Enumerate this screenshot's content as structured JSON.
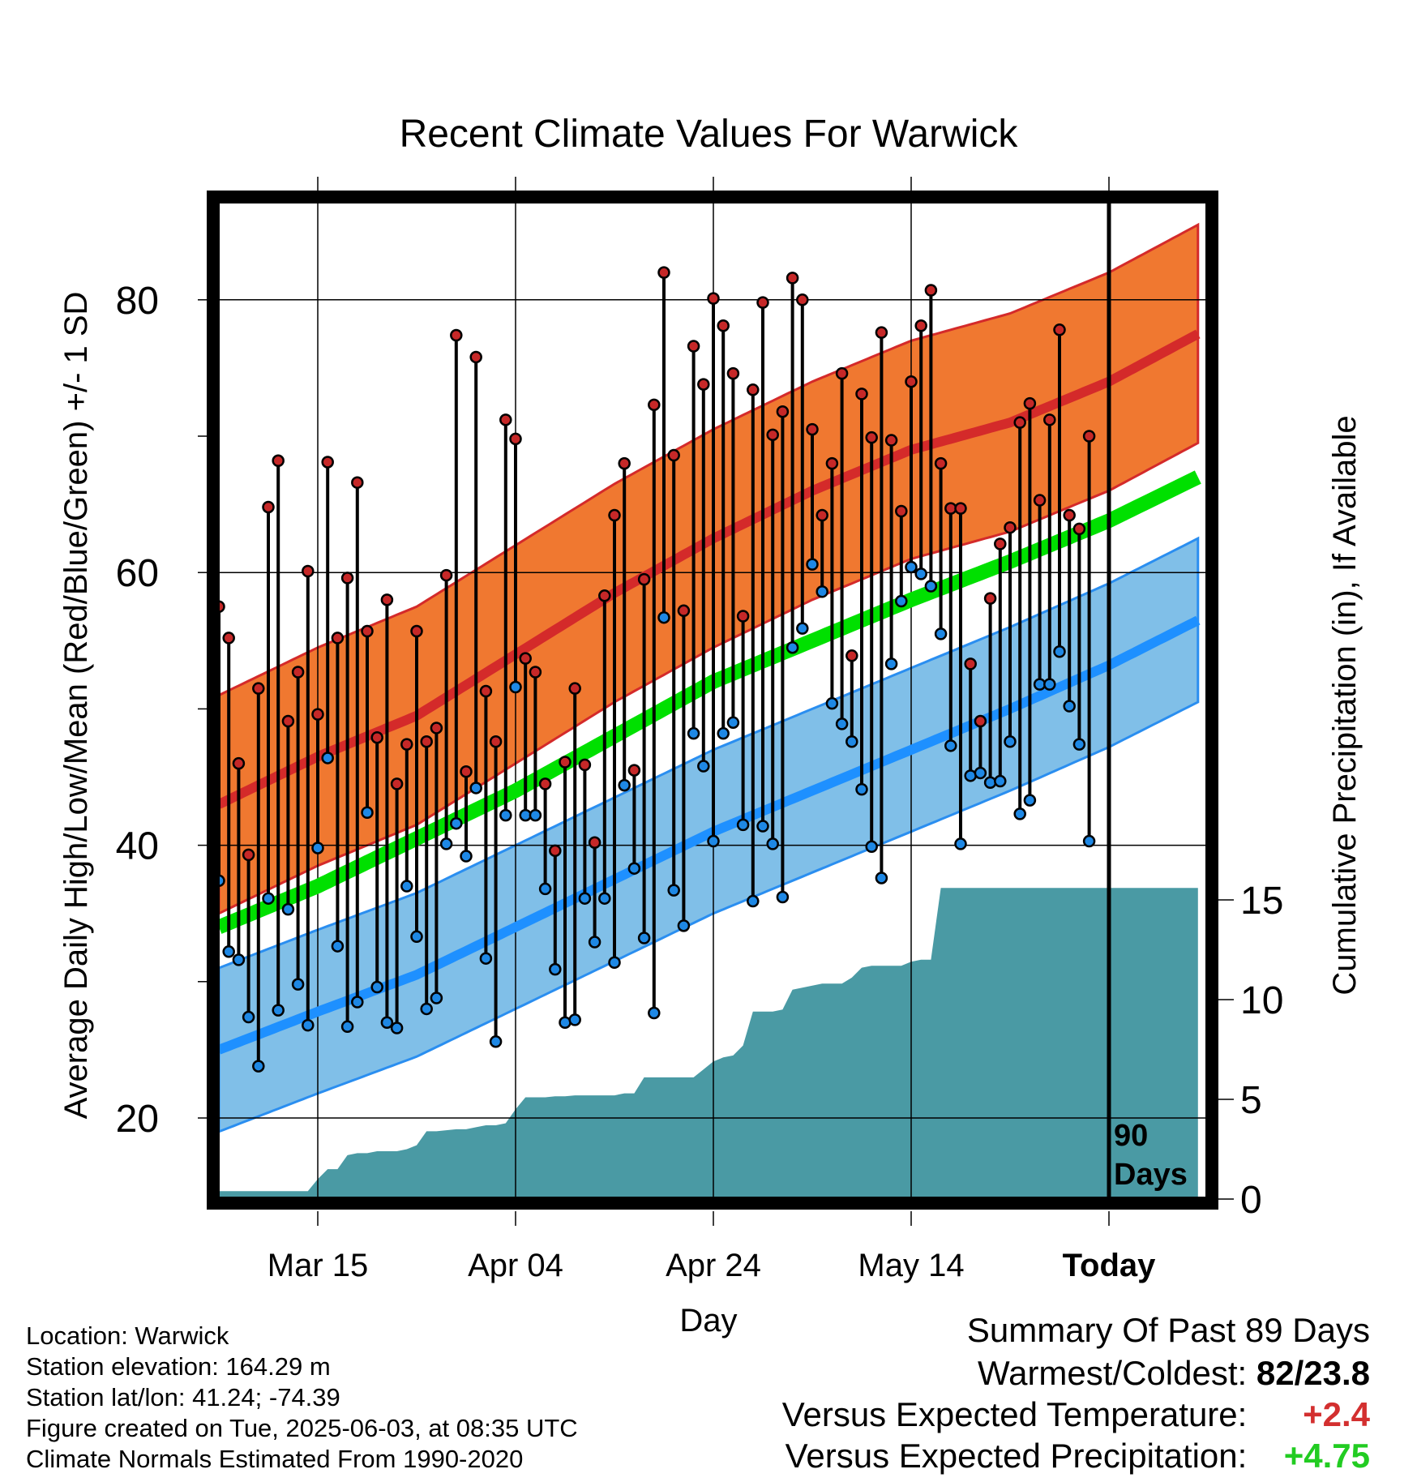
{
  "chart_data": {
    "type": "line",
    "title": "Recent Climate Values For Warwick",
    "xlabel": "Day",
    "ylabel_left": "Average Daily High/Low/Mean (Red/Blue/Green) +/- 1 SD",
    "ylabel_right": "Cumulative Precipitation (in), If Available",
    "x_ticks": [
      {
        "day": 10,
        "label": "Mar 15"
      },
      {
        "day": 30,
        "label": "Apr 04"
      },
      {
        "day": 50,
        "label": "Apr 24"
      },
      {
        "day": 70,
        "label": "May 14"
      },
      {
        "day": 90,
        "label": "Today"
      }
    ],
    "xlim": [
      0,
      99
    ],
    "temp_ylim": [
      14,
      88
    ],
    "temp_ticks": [
      20,
      40,
      60,
      80
    ],
    "precip_ylim": [
      0,
      41
    ],
    "precip_ticks": [
      0,
      5,
      10,
      15
    ],
    "today_marker_day": 90,
    "today_label": [
      "90",
      "Days"
    ],
    "normal_days": [
      0,
      10,
      20,
      30,
      40,
      50,
      60,
      70,
      80,
      90,
      99
    ],
    "normal_high": [
      43,
      46.5,
      49.5,
      54,
      58.5,
      62.5,
      66,
      69,
      71,
      74,
      77.5
    ],
    "normal_high_sd": 8.0,
    "normal_low": [
      25,
      27.8,
      30.5,
      34,
      37.5,
      41,
      44,
      47,
      50,
      53.2,
      56.5
    ],
    "normal_low_sd": 6.0,
    "normal_mean": [
      34,
      37,
      40.5,
      44,
      48,
      52,
      55,
      58,
      60.8,
      63.8,
      67
    ],
    "series": [
      {
        "name": "High",
        "color": "#c62828",
        "values": [
          57.5,
          55.2,
          46,
          39.3,
          51.5,
          64.8,
          68.2,
          49.1,
          52.7,
          60.1,
          49.6,
          68.1,
          55.2,
          59.6,
          66.6,
          55.7,
          47.9,
          58,
          44.5,
          47.4,
          55.7,
          47.6,
          48.6,
          59.8,
          77.4,
          45.4,
          75.8,
          51.3,
          47.6,
          71.2,
          69.8,
          53.7,
          52.7,
          44.5,
          39.6,
          46.1,
          51.5,
          45.9,
          40.2,
          58.3,
          64.2,
          68,
          45.5,
          59.5,
          72.3,
          82,
          68.6,
          57.2,
          76.6,
          73.8,
          80.1,
          78.1,
          74.6,
          56.8,
          73.4,
          79.8,
          70.1,
          71.8,
          81.6,
          80,
          70.5,
          64.2,
          68,
          74.6,
          53.9,
          73.1,
          69.9,
          77.6,
          69.7,
          64.5,
          74,
          78.1,
          80.7,
          68,
          64.7,
          64.7,
          53.3,
          49.1,
          58.1,
          62.1,
          63.3,
          71,
          72.4,
          65.3,
          71.2,
          77.8,
          64.2,
          63.2,
          70
        ]
      },
      {
        "name": "Low",
        "color": "#1e88e5",
        "values": [
          37.4,
          32.2,
          31.6,
          27.4,
          23.8,
          36.1,
          27.9,
          35.3,
          29.8,
          26.8,
          39.8,
          46.4,
          32.6,
          26.7,
          28.5,
          42.4,
          29.6,
          27,
          26.6,
          37,
          33.3,
          28,
          28.8,
          40.1,
          41.6,
          39.2,
          44.2,
          31.7,
          25.6,
          42.2,
          51.6,
          42.2,
          42.2,
          36.8,
          30.9,
          27,
          27.2,
          36.1,
          32.9,
          36.1,
          31.4,
          44.4,
          38.3,
          33.2,
          27.7,
          56.7,
          36.7,
          34.1,
          48.2,
          45.8,
          40.3,
          48.2,
          49,
          41.5,
          35.9,
          41.4,
          40.1,
          36.2,
          54.5,
          55.9,
          60.6,
          58.6,
          50.4,
          48.9,
          47.6,
          44.1,
          39.9,
          37.6,
          53.3,
          57.9,
          60.4,
          59.9,
          59,
          55.5,
          47.3,
          40.1,
          45.1,
          45.3,
          44.6,
          44.7,
          47.6,
          42.3,
          43.3,
          51.8,
          51.8,
          54.2,
          50.2,
          47.4,
          40.3
        ]
      }
    ],
    "precip_days": [
      0,
      9,
      10,
      11,
      12,
      13,
      14,
      15,
      16,
      17,
      18,
      19,
      20,
      21,
      22,
      23,
      24,
      25,
      26,
      27,
      28,
      29,
      30,
      31,
      32,
      33,
      34,
      35,
      36,
      37,
      38,
      39,
      40,
      41,
      42,
      43,
      44,
      45,
      46,
      47,
      48,
      49,
      50,
      51,
      52,
      53,
      54,
      55,
      56,
      57,
      58,
      59,
      60,
      61,
      62,
      63,
      64,
      65,
      66,
      67,
      68,
      69,
      70,
      71,
      72,
      73,
      74,
      75,
      76,
      77,
      78,
      79,
      80,
      81,
      82,
      83,
      84,
      85,
      86,
      87,
      88,
      89,
      90,
      91,
      92,
      93,
      94,
      95,
      96,
      97,
      98,
      99
    ],
    "precip_values": [
      0.4,
      0.4,
      1.0,
      1.5,
      1.5,
      2.2,
      2.3,
      2.3,
      2.4,
      2.4,
      2.4,
      2.5,
      2.7,
      3.4,
      3.4,
      3.45,
      3.5,
      3.5,
      3.6,
      3.7,
      3.7,
      3.8,
      4.5,
      5.1,
      5.1,
      5.1,
      5.15,
      5.15,
      5.2,
      5.2,
      5.2,
      5.2,
      5.2,
      5.3,
      5.3,
      6.1,
      6.1,
      6.1,
      6.1,
      6.1,
      6.1,
      6.5,
      6.9,
      7.1,
      7.2,
      7.7,
      9.4,
      9.4,
      9.4,
      9.5,
      10.5,
      10.6,
      10.7,
      10.8,
      10.8,
      10.8,
      11.1,
      11.6,
      11.7,
      11.7,
      11.7,
      11.7,
      11.9,
      12.0,
      12.0,
      15.6,
      15.6,
      15.6,
      15.6,
      15.6,
      15.6,
      15.6,
      15.6,
      15.6,
      15.6,
      15.6,
      15.6,
      15.6,
      15.6,
      15.6,
      15.6,
      15.6,
      15.6,
      15.6,
      15.6,
      15.6,
      15.6,
      15.6,
      15.6,
      15.6,
      15.6,
      15.6
    ],
    "colors": {
      "high_band": "#f07830",
      "high_line": "#d42a2a",
      "low_band": "#80bfe8",
      "low_line": "#1e90ff",
      "mean_line": "#00e000",
      "precip": "#4a9aa4"
    }
  },
  "info": {
    "location": "Location: Warwick",
    "elevation": "Station elevation: 164.29 m",
    "latlon": "Station lat/lon: 41.24; -74.39",
    "created": "Figure created on Tue, 2025-06-03, at 08:35 UTC",
    "normals": "Climate Normals Estimated From 1990-2020"
  },
  "summary": {
    "title": "Summary Of Past 89 Days",
    "warm_cold_label": "Warmest/Coldest:",
    "warm_cold_value": "82/23.8",
    "temp_label": "Versus Expected Temperature:",
    "temp_value": "+2.4",
    "temp_color": "#d32f2f",
    "precip_label": "Versus Expected Precipitation:",
    "precip_value": "+4.75",
    "precip_color": "#22cc22"
  }
}
